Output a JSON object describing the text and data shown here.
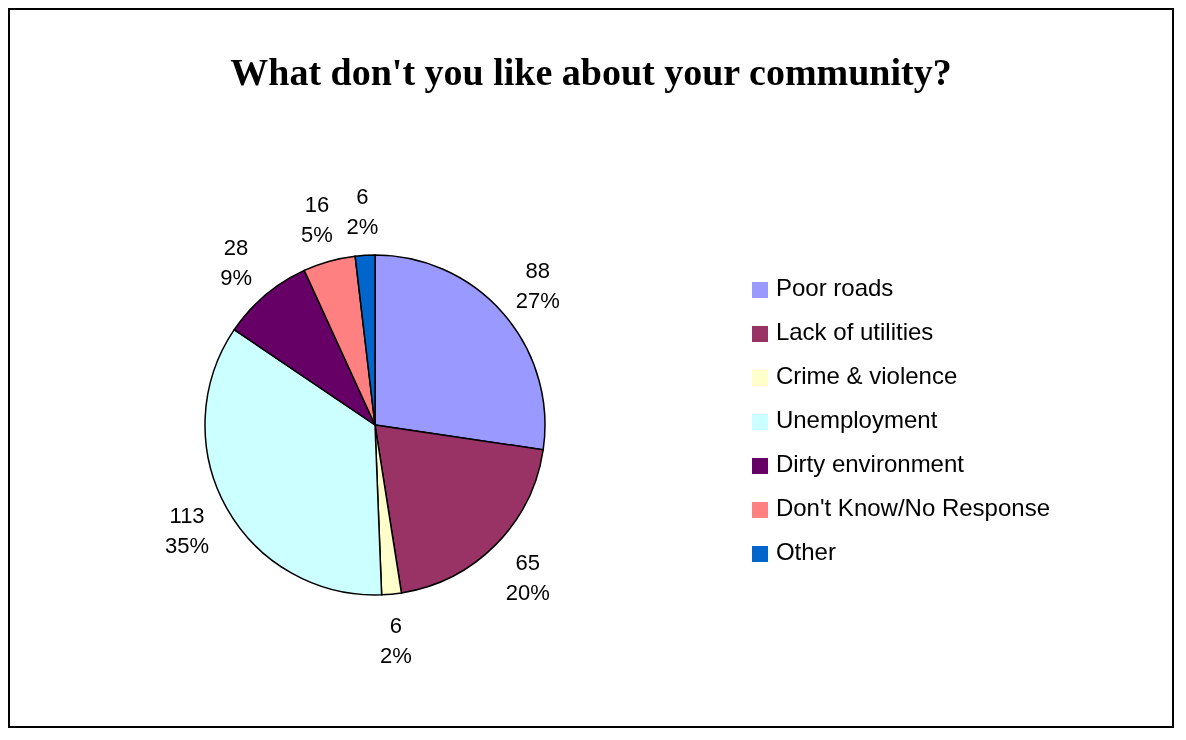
{
  "chart_data": {
    "type": "pie",
    "title": "What don't you like about your community?",
    "categories": [
      "Poor roads",
      "Lack of utilities",
      "Crime & violence",
      "Unemployment",
      "Dirty environment",
      "Don't Know/No Response",
      "Other"
    ],
    "values": [
      88,
      65,
      6,
      113,
      28,
      16,
      6
    ],
    "value_labels": [
      "88\n27%",
      "65\n20%",
      "6\n2%",
      "113\n35%",
      "28\n9%",
      "16\n5%",
      "6\n2%"
    ],
    "colors": [
      "#9999ff",
      "#993366",
      "#ffffcc",
      "#ccffff",
      "#660066",
      "#ff8080",
      "#0066cc"
    ],
    "legend": "right"
  }
}
